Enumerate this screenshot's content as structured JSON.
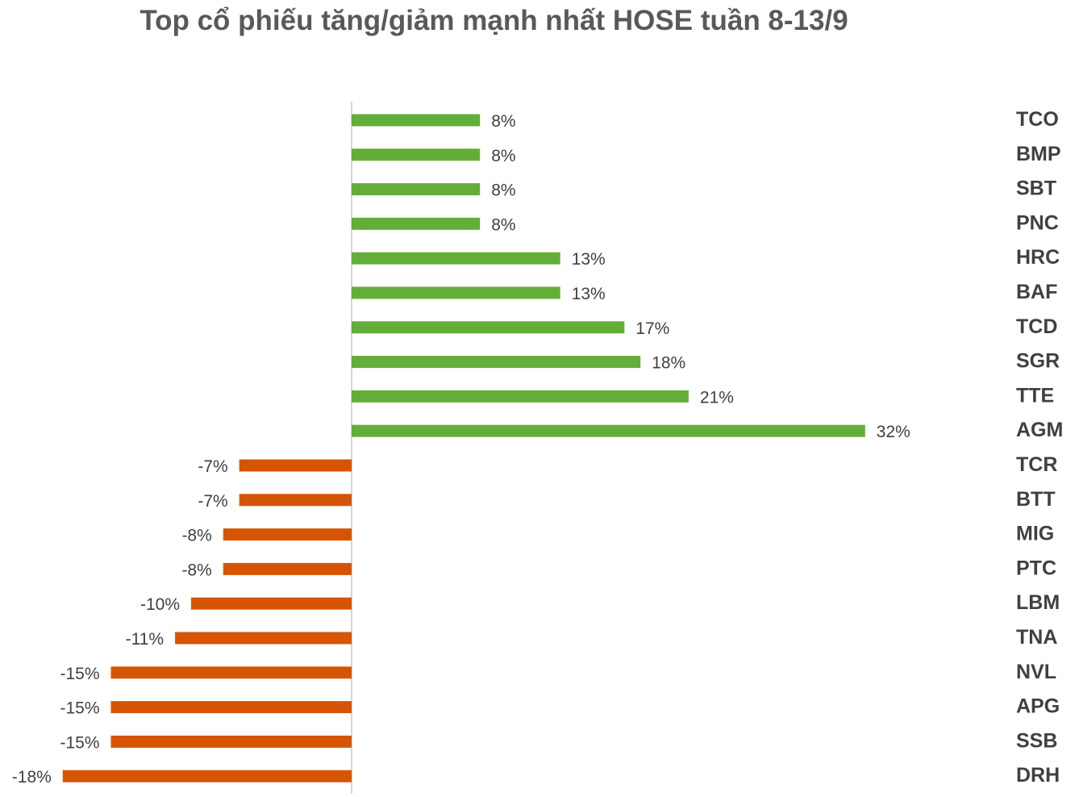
{
  "chart_data": {
    "type": "bar",
    "orientation": "horizontal",
    "title": "Top cổ phiếu tăng/giảm mạnh nhất HOSE tuần 8-13/9",
    "xlabel": "",
    "ylabel": "",
    "unit": "%",
    "grid": false,
    "legend": "none",
    "categories": [
      "TCO",
      "BMP",
      "SBT",
      "PNC",
      "HRC",
      "BAF",
      "TCD",
      "SGR",
      "TTE",
      "AGM",
      "TCR",
      "BTT",
      "MIG",
      "PTC",
      "LBM",
      "TNA",
      "NVL",
      "APG",
      "SSB",
      "DRH"
    ],
    "values": [
      8,
      8,
      8,
      8,
      13,
      13,
      17,
      18,
      21,
      32,
      -7,
      -7,
      -8,
      -8,
      -10,
      -11,
      -15,
      -15,
      -15,
      -18
    ],
    "labels": [
      "8%",
      "8%",
      "8%",
      "8%",
      "13%",
      "13%",
      "17%",
      "18%",
      "21%",
      "32%",
      "-7%",
      "-7%",
      "-8%",
      "-8%",
      "-10%",
      "-11%",
      "-15%",
      "-15%",
      "-15%",
      "-18%"
    ],
    "colors": {
      "positive": "#63AE38",
      "negative": "#D55504",
      "axis": "#C8C8C8"
    }
  }
}
